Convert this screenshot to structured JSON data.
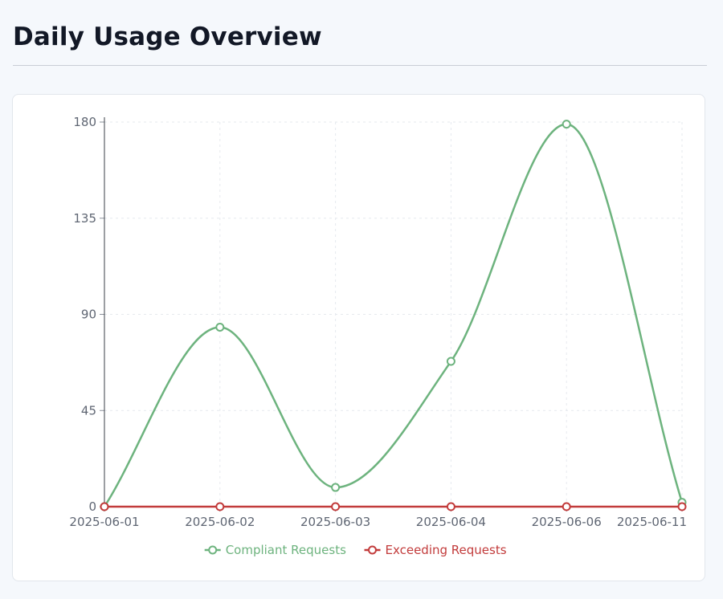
{
  "page": {
    "title": "Daily Usage Overview"
  },
  "chart_data": {
    "type": "line",
    "categories": [
      "2025-06-01",
      "2025-06-02",
      "2025-06-03",
      "2025-06-04",
      "2025-06-06",
      "2025-06-11"
    ],
    "series": [
      {
        "name": "Compliant Requests",
        "color": "#6db37e",
        "values": [
          0,
          84,
          9,
          68,
          179,
          2
        ]
      },
      {
        "name": "Exceeding Requests",
        "color": "#c23b3b",
        "values": [
          0,
          0,
          0,
          0,
          0,
          0
        ]
      }
    ],
    "yticks": [
      0,
      45,
      90,
      135,
      180
    ],
    "ylim": [
      0,
      180
    ],
    "smooth": true,
    "grid": true,
    "legend": "bottom-center"
  }
}
